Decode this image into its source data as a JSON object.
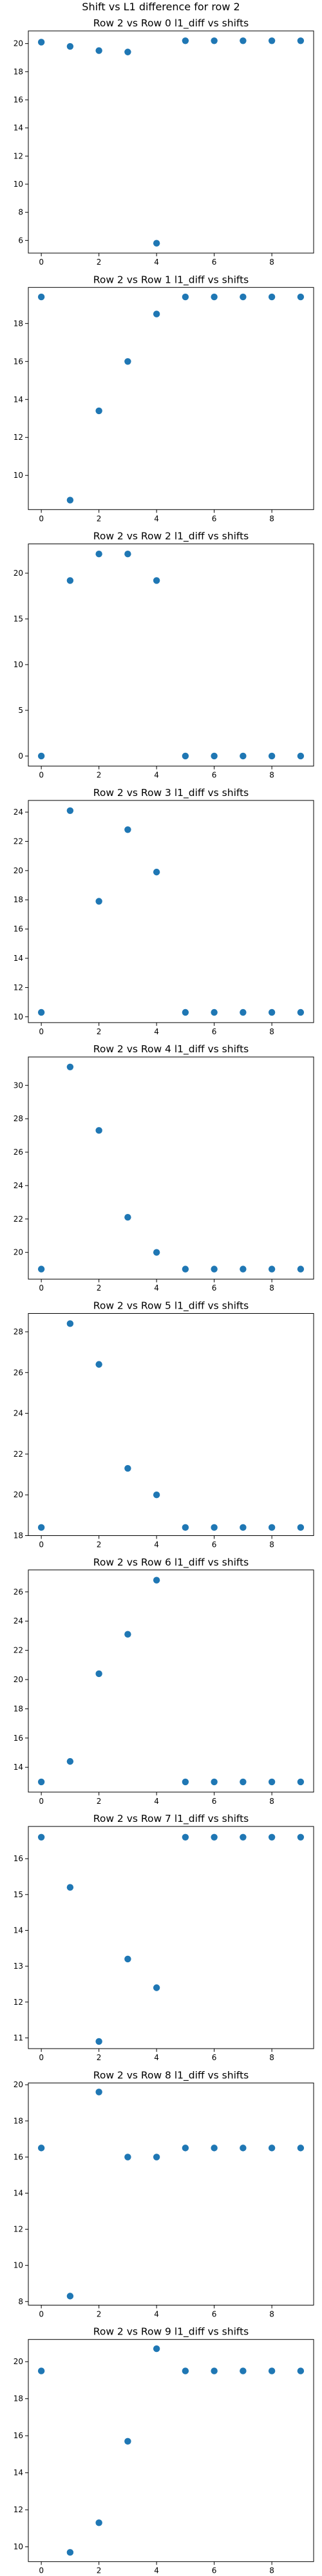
{
  "figure_title": "Shift vs L1 difference for row 2",
  "colors": {
    "marker": "#1f77b4",
    "axis": "#000000",
    "background": "#ffffff"
  },
  "chart_data": [
    {
      "type": "scatter",
      "title": "Row 2 vs Row 0 l1_diff vs shifts",
      "x": [
        0,
        1,
        2,
        3,
        4,
        5,
        6,
        7,
        8,
        9
      ],
      "y": [
        20.1,
        19.8,
        19.5,
        19.4,
        5.8,
        20.2,
        20.2,
        20.2,
        20.2,
        20.2
      ],
      "ylim": [
        5.1,
        20.9
      ],
      "xlim": [
        -0.45,
        9.45
      ],
      "xticks": [
        0,
        2,
        4,
        6,
        8
      ],
      "yticks": [
        6,
        8,
        10,
        12,
        14,
        16,
        18,
        20
      ],
      "grid": false
    },
    {
      "type": "scatter",
      "title": "Row 2 vs Row 1 l1_diff vs shifts",
      "x": [
        0,
        1,
        2,
        3,
        4,
        5,
        6,
        7,
        8,
        9
      ],
      "y": [
        19.4,
        8.7,
        13.4,
        16.0,
        18.5,
        19.4,
        19.4,
        19.4,
        19.4,
        19.4
      ],
      "ylim": [
        8.2,
        19.9
      ],
      "xlim": [
        -0.45,
        9.45
      ],
      "xticks": [
        0,
        2,
        4,
        6,
        8
      ],
      "yticks": [
        10,
        12,
        14,
        16,
        18
      ],
      "grid": false
    },
    {
      "type": "scatter",
      "title": "Row 2 vs Row 2 l1_diff vs shifts",
      "x": [
        0,
        1,
        2,
        3,
        4,
        5,
        6,
        7,
        8,
        9
      ],
      "y": [
        0,
        19.2,
        22.1,
        22.1,
        19.2,
        0,
        0,
        0,
        0,
        0
      ],
      "ylim": [
        -1.1,
        23.2
      ],
      "xlim": [
        -0.45,
        9.45
      ],
      "xticks": [
        0,
        2,
        4,
        6,
        8
      ],
      "yticks": [
        0,
        5,
        10,
        15,
        20
      ],
      "grid": false
    },
    {
      "type": "scatter",
      "title": "Row 2 vs Row 3 l1_diff vs shifts",
      "x": [
        0,
        1,
        2,
        3,
        4,
        5,
        6,
        7,
        8,
        9
      ],
      "y": [
        10.3,
        24.1,
        17.9,
        22.8,
        19.9,
        10.3,
        10.3,
        10.3,
        10.3,
        10.3
      ],
      "ylim": [
        9.6,
        24.8
      ],
      "xlim": [
        -0.45,
        9.45
      ],
      "xticks": [
        0,
        2,
        4,
        6,
        8
      ],
      "yticks": [
        10,
        12,
        14,
        16,
        18,
        20,
        22,
        24
      ],
      "grid": false
    },
    {
      "type": "scatter",
      "title": "Row 2 vs Row 4 l1_diff vs shifts",
      "x": [
        0,
        1,
        2,
        3,
        4,
        5,
        6,
        7,
        8,
        9
      ],
      "y": [
        19.0,
        31.1,
        27.3,
        22.1,
        20.0,
        19.0,
        19.0,
        19.0,
        19.0,
        19.0
      ],
      "ylim": [
        18.4,
        31.7
      ],
      "xlim": [
        -0.45,
        9.45
      ],
      "xticks": [
        0,
        2,
        4,
        6,
        8
      ],
      "yticks": [
        20,
        22,
        24,
        26,
        28,
        30
      ],
      "grid": false
    },
    {
      "type": "scatter",
      "title": "Row 2 vs Row 5 l1_diff vs shifts",
      "x": [
        0,
        1,
        2,
        3,
        4,
        5,
        6,
        7,
        8,
        9
      ],
      "y": [
        18.4,
        28.4,
        26.4,
        21.3,
        20.0,
        18.4,
        18.4,
        18.4,
        18.4,
        18.4
      ],
      "ylim": [
        18.0,
        28.9
      ],
      "xlim": [
        -0.45,
        9.45
      ],
      "xticks": [
        0,
        2,
        4,
        6,
        8
      ],
      "yticks": [
        18,
        20,
        22,
        24,
        26,
        28
      ],
      "grid": false
    },
    {
      "type": "scatter",
      "title": "Row 2 vs Row 6 l1_diff vs shifts",
      "x": [
        0,
        1,
        2,
        3,
        4,
        5,
        6,
        7,
        8,
        9
      ],
      "y": [
        13.0,
        14.4,
        20.4,
        23.1,
        26.8,
        13.0,
        13.0,
        13.0,
        13.0,
        13.0
      ],
      "ylim": [
        12.3,
        27.5
      ],
      "xlim": [
        -0.45,
        9.45
      ],
      "xticks": [
        0,
        2,
        4,
        6,
        8
      ],
      "yticks": [
        14,
        16,
        18,
        20,
        22,
        24,
        26
      ],
      "grid": false
    },
    {
      "type": "scatter",
      "title": "Row 2 vs Row 7 l1_diff vs shifts",
      "x": [
        0,
        1,
        2,
        3,
        4,
        5,
        6,
        7,
        8,
        9
      ],
      "y": [
        16.6,
        15.2,
        10.9,
        13.2,
        12.4,
        16.6,
        16.6,
        16.6,
        16.6,
        16.6
      ],
      "ylim": [
        10.7,
        16.9
      ],
      "xlim": [
        -0.45,
        9.45
      ],
      "xticks": [
        0,
        2,
        4,
        6,
        8
      ],
      "yticks": [
        11,
        12,
        13,
        14,
        15,
        16
      ],
      "grid": false
    },
    {
      "type": "scatter",
      "title": "Row 2 vs Row 8 l1_diff vs shifts",
      "x": [
        0,
        1,
        2,
        3,
        4,
        5,
        6,
        7,
        8,
        9
      ],
      "y": [
        16.5,
        8.3,
        19.6,
        16.0,
        16.0,
        16.5,
        16.5,
        16.5,
        16.5,
        16.5
      ],
      "ylim": [
        7.8,
        20.1
      ],
      "xlim": [
        -0.45,
        9.45
      ],
      "xticks": [
        0,
        2,
        4,
        6,
        8
      ],
      "yticks": [
        8,
        10,
        12,
        14,
        16,
        18,
        20
      ],
      "grid": false
    },
    {
      "type": "scatter",
      "title": "Row 2 vs Row 9 l1_diff vs shifts",
      "x": [
        0,
        1,
        2,
        3,
        4,
        5,
        6,
        7,
        8,
        9
      ],
      "y": [
        19.5,
        9.7,
        11.3,
        15.7,
        20.7,
        19.5,
        19.5,
        19.5,
        19.5,
        19.5
      ],
      "ylim": [
        9.2,
        21.2
      ],
      "xlim": [
        -0.45,
        9.45
      ],
      "xticks": [
        0,
        2,
        4,
        6,
        8
      ],
      "yticks": [
        10,
        12,
        14,
        16,
        18,
        20
      ],
      "grid": false
    }
  ]
}
